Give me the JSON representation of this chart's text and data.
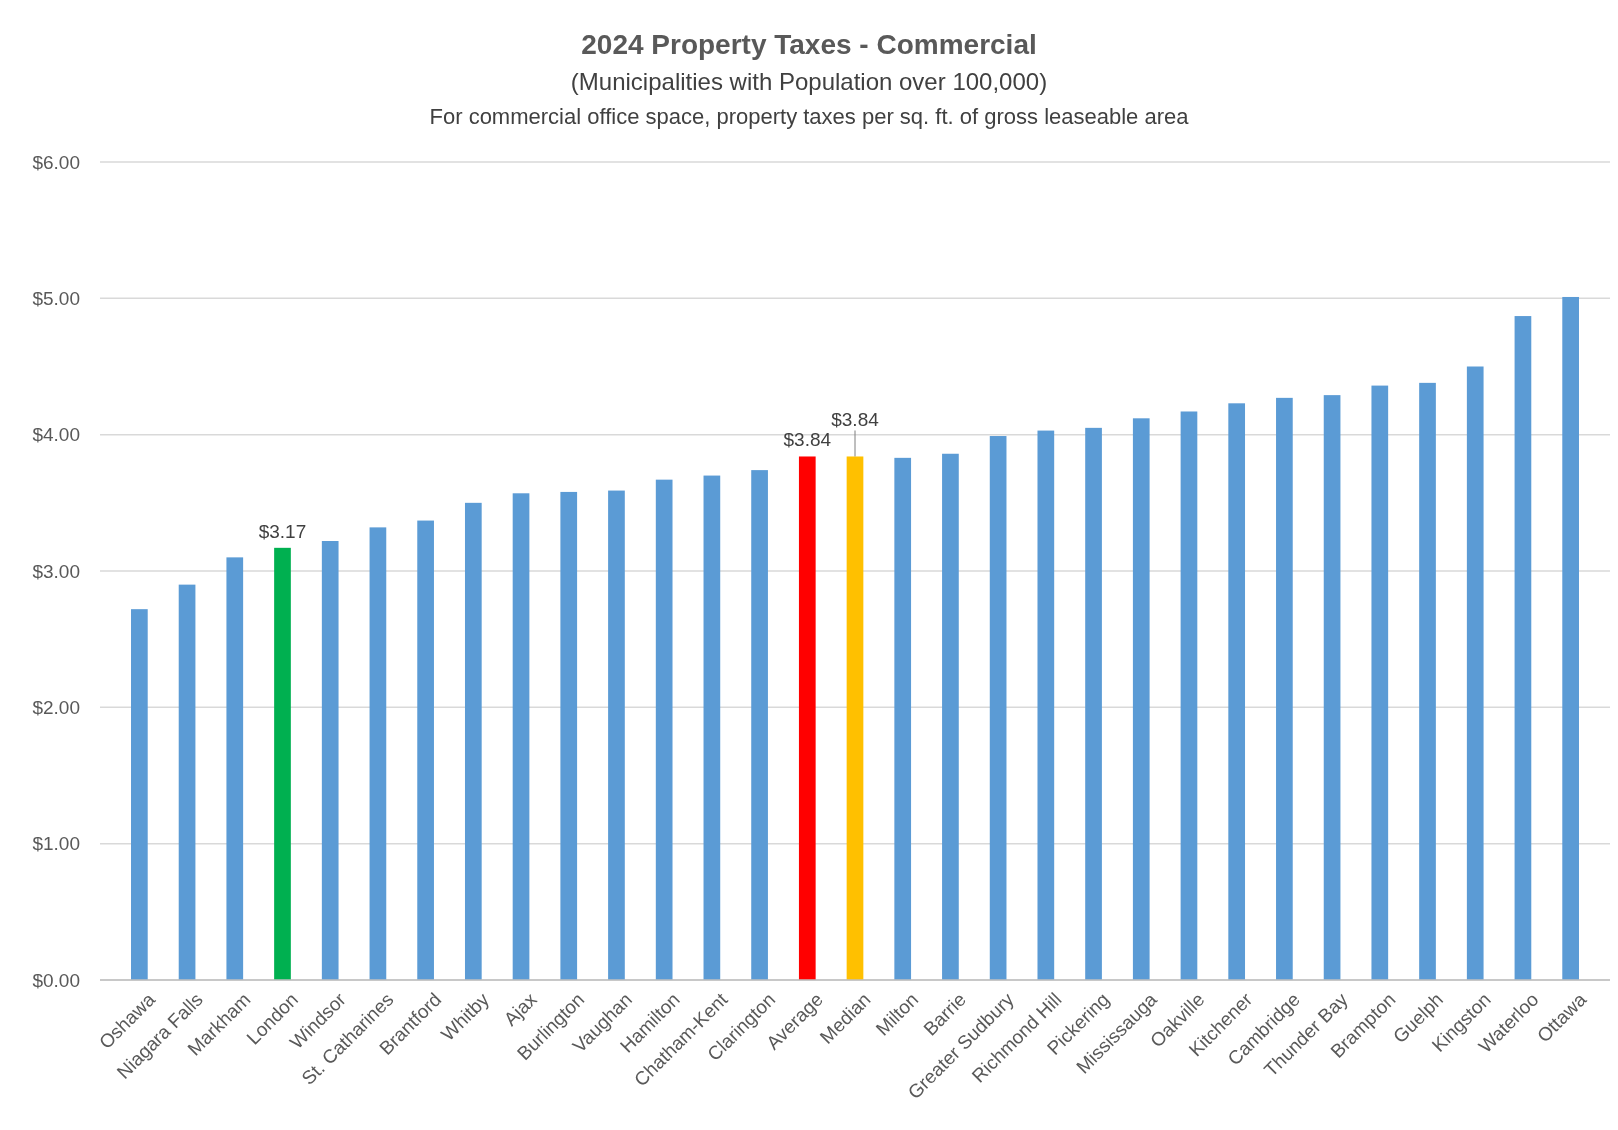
{
  "chart_data": {
    "type": "bar",
    "title": "2024 Property Taxes - Commercial",
    "subtitle": "(Municipalities with Population over 100,000)\nFor commercial office space, property taxes per sq. ft. of gross leaseable area",
    "categories": [
      "Oshawa",
      "Niagara Falls",
      "Markham",
      "London",
      "Windsor",
      "St. Catharines",
      "Brantford",
      "Whitby",
      "Ajax",
      "Burlington",
      "Vaughan",
      "Hamilton",
      "Chatham-Kent",
      "Clarington",
      "Average",
      "Median",
      "Milton",
      "Barrie",
      "Greater Sudbury",
      "Richmond Hill",
      "Pickering",
      "Mississauga",
      "Oakville",
      "Kitchener",
      "Cambridge",
      "Thunder Bay",
      "Brampton",
      "Guelph",
      "Kingston",
      "Waterloo",
      "Ottawa"
    ],
    "values": [
      2.72,
      2.9,
      3.1,
      3.17,
      3.22,
      3.32,
      3.37,
      3.5,
      3.57,
      3.58,
      3.59,
      3.67,
      3.7,
      3.74,
      3.84,
      3.84,
      3.83,
      3.86,
      3.99,
      4.03,
      4.05,
      4.12,
      4.17,
      4.23,
      4.27,
      4.29,
      4.36,
      4.38,
      4.5,
      4.87,
      5.01
    ],
    "colors": [
      "#5b9bd5",
      "#5b9bd5",
      "#5b9bd5",
      "#00b050",
      "#5b9bd5",
      "#5b9bd5",
      "#5b9bd5",
      "#5b9bd5",
      "#5b9bd5",
      "#5b9bd5",
      "#5b9bd5",
      "#5b9bd5",
      "#5b9bd5",
      "#5b9bd5",
      "#ff0000",
      "#ffc000",
      "#5b9bd5",
      "#5b9bd5",
      "#5b9bd5",
      "#5b9bd5",
      "#5b9bd5",
      "#5b9bd5",
      "#5b9bd5",
      "#5b9bd5",
      "#5b9bd5",
      "#5b9bd5",
      "#5b9bd5",
      "#5b9bd5",
      "#5b9bd5",
      "#5b9bd5",
      "#5b9bd5"
    ],
    "value_labels": [
      null,
      null,
      null,
      "$3.17",
      null,
      null,
      null,
      null,
      null,
      null,
      null,
      null,
      null,
      null,
      "$3.84",
      "$3.84",
      null,
      null,
      null,
      null,
      null,
      null,
      null,
      null,
      null,
      null,
      null,
      null,
      null,
      null,
      null
    ],
    "ylim": [
      0,
      6
    ],
    "yticks": [
      {
        "value": 0,
        "label": "$0.00"
      },
      {
        "value": 1,
        "label": "$1.00"
      },
      {
        "value": 2,
        "label": "$2.00"
      },
      {
        "value": 3,
        "label": "$3.00"
      },
      {
        "value": 4,
        "label": "$4.00"
      },
      {
        "value": 5,
        "label": "$5.00"
      },
      {
        "value": 6,
        "label": "$6.00"
      }
    ],
    "grid": "y"
  }
}
